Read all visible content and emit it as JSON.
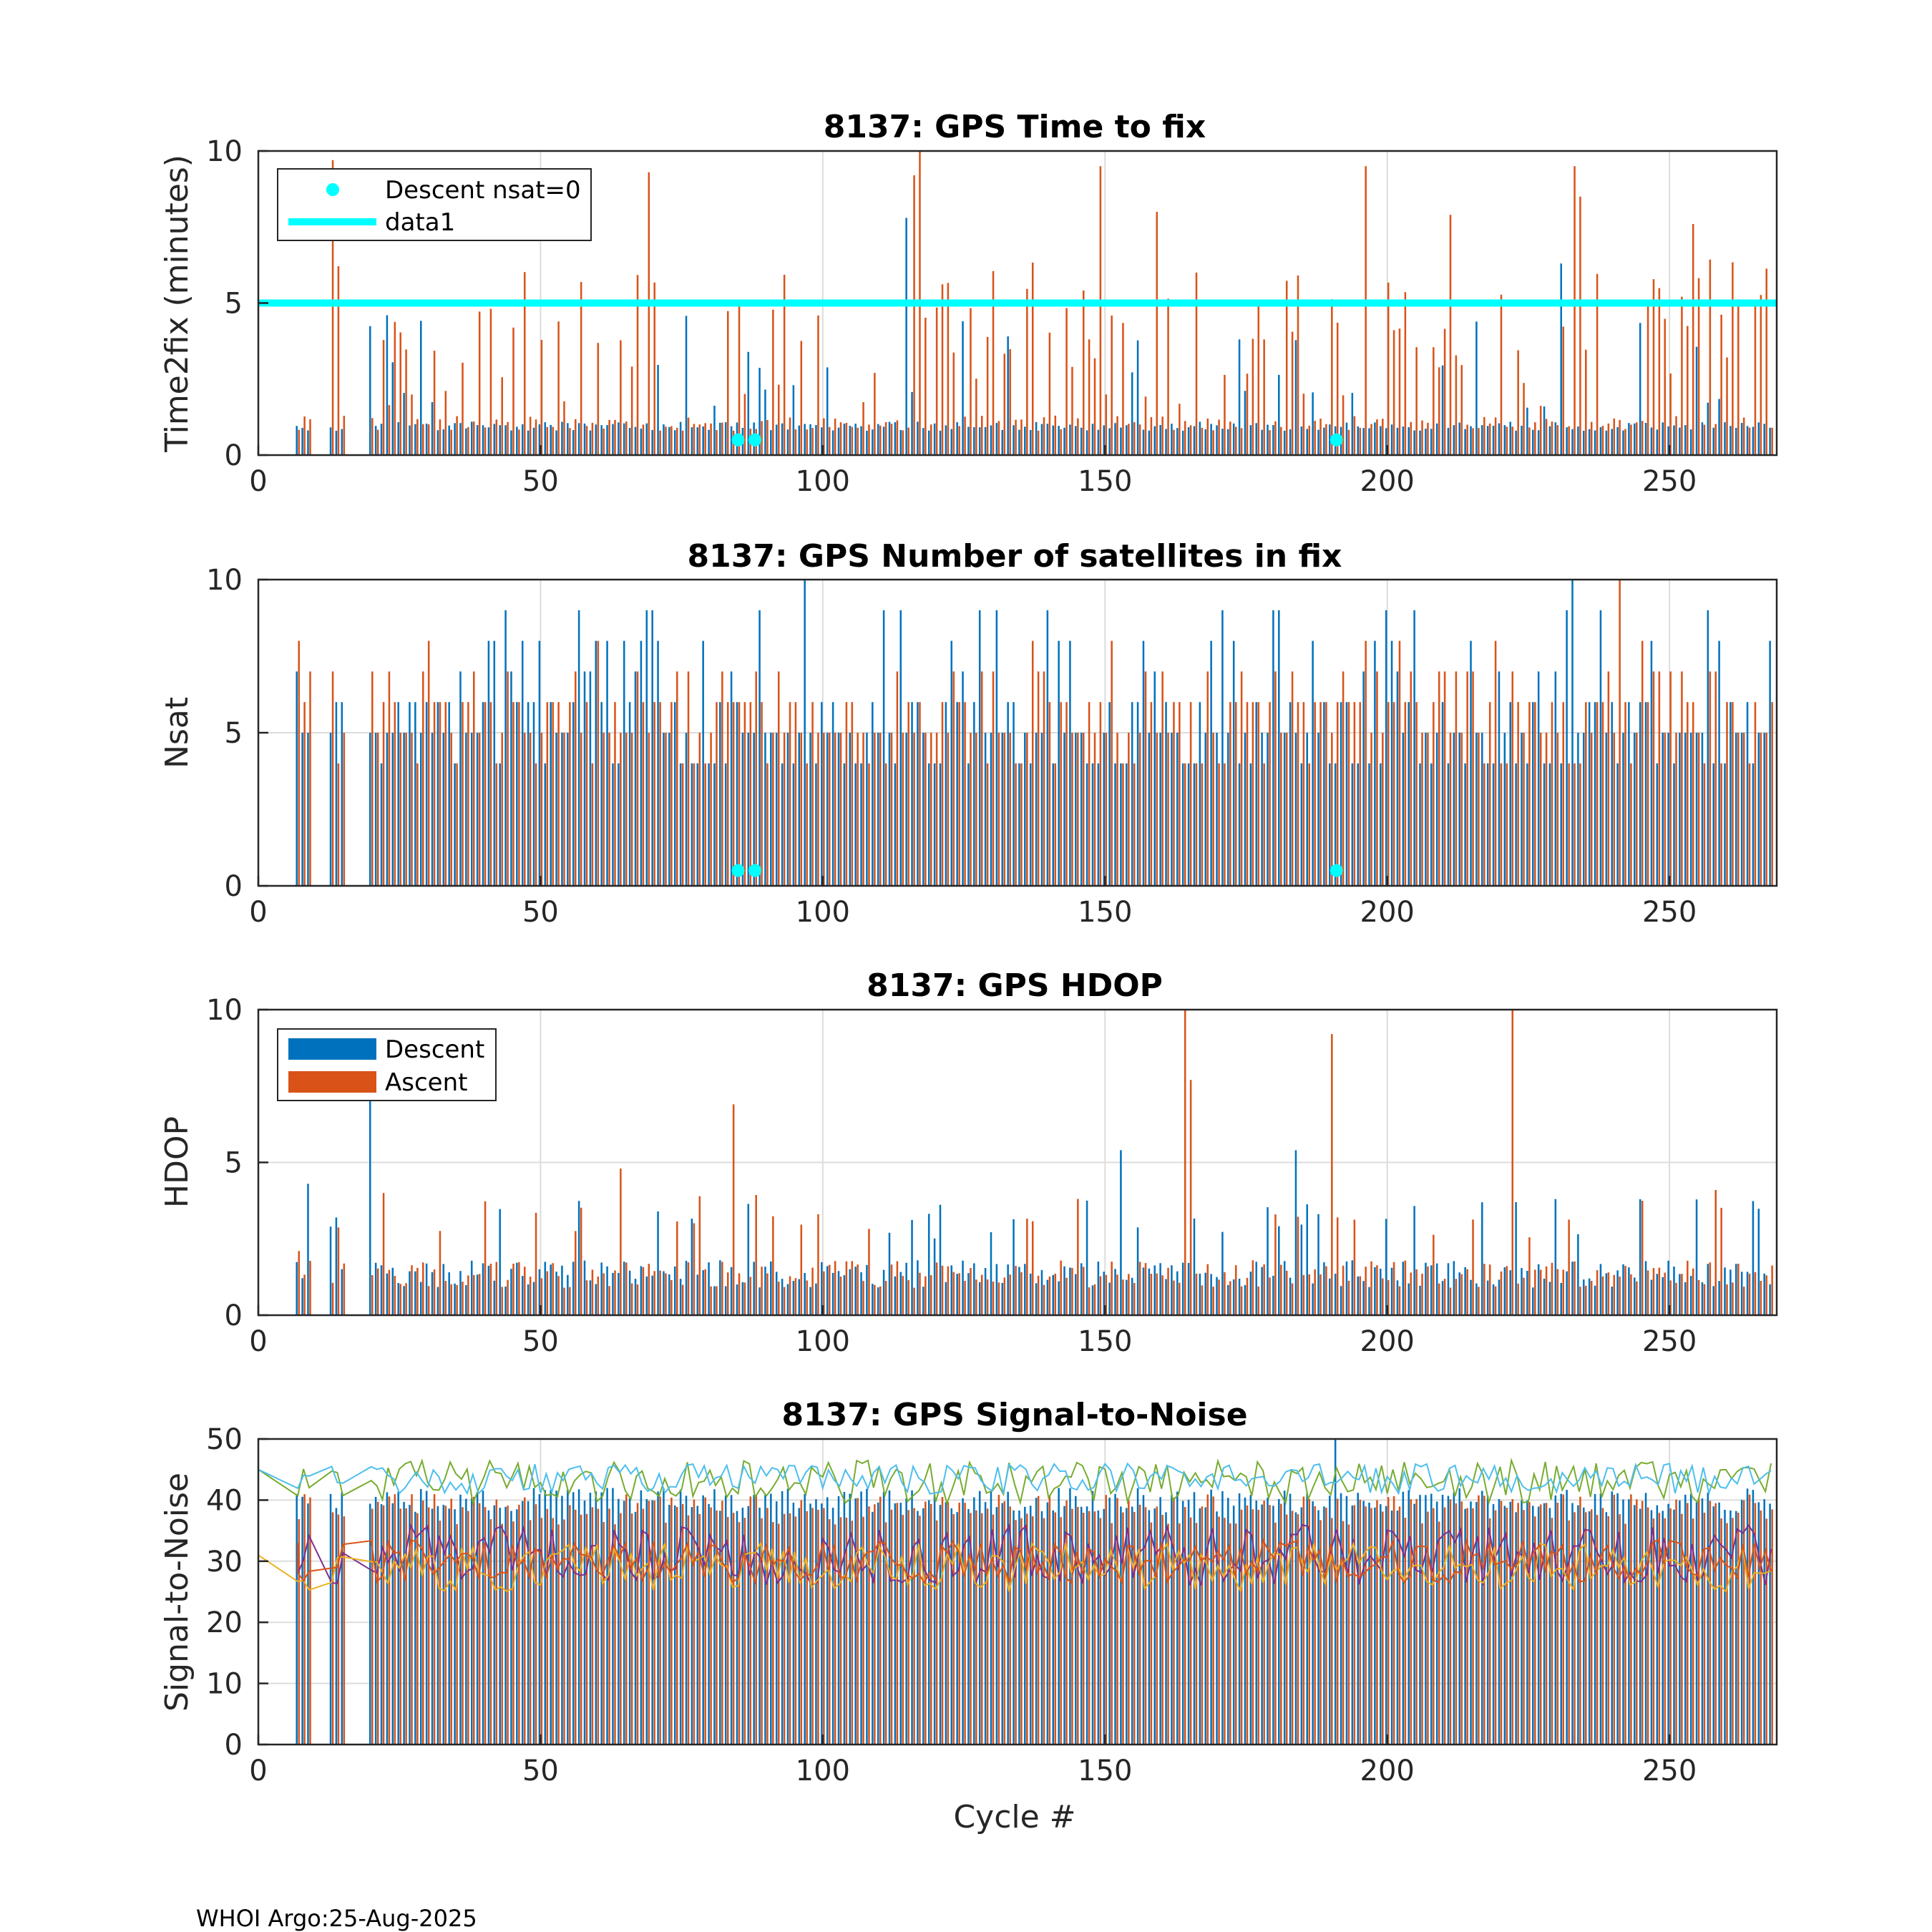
{
  "figure": {
    "footer": "WHOI Argo:25-Aug-2025",
    "xlabel": "Cycle #",
    "xlim": [
      0,
      269
    ],
    "xticks": [
      0,
      50,
      100,
      150,
      200,
      250
    ]
  },
  "colors": {
    "descent": "#0072BD",
    "ascent": "#D95319",
    "cyan": "#00FFFF",
    "snr_lines": [
      "#77AC30",
      "#4DBEEE",
      "#7E2F8E",
      "#EDB120",
      "#0072BD",
      "#D95319"
    ]
  },
  "chart_data": [
    {
      "id": "ttf",
      "type": "bar",
      "title": "8137: GPS Time to fix",
      "ylabel": "Time2fix (minutes)",
      "ylim": [
        0,
        10
      ],
      "yticks": [
        0,
        5,
        10
      ],
      "legend": {
        "location": "top-left",
        "entries": [
          "Descent nsat=0",
          "data1"
        ]
      },
      "reference_line": {
        "name": "data1",
        "y": 5
      },
      "nsat0_markers": {
        "name": "Descent nsat=0",
        "x": [
          85,
          88,
          191
        ],
        "y": 0.5
      },
      "series": [
        {
          "name": "Descent",
          "color": "descent",
          "base": 0.8,
          "base_noise": 0.3,
          "spike_prob": 0.1,
          "spike_range": [
            1.5,
            4.6
          ],
          "overrides": [
            [
              115,
              7.8
            ],
            [
              125,
              4.4
            ],
            [
              231,
              6.3
            ],
            [
              23,
              4.6
            ]
          ]
        },
        {
          "name": "Ascent",
          "color": "ascent",
          "base": 0.8,
          "base_noise": 0.5,
          "spike_prob": 0.45,
          "spike_range": [
            1.5,
            6.5
          ],
          "overrides": [
            [
              117,
              10.0
            ],
            [
              116,
              9.2
            ],
            [
              69,
              9.3
            ],
            [
              233,
              9.5
            ],
            [
              149,
              9.5
            ],
            [
              196,
              9.5
            ],
            [
              13,
              9.7
            ],
            [
              159,
              8.0
            ],
            [
              211,
              7.9
            ],
            [
              254,
              7.6
            ],
            [
              234,
              8.5
            ]
          ]
        }
      ]
    },
    {
      "id": "nsat",
      "type": "bar",
      "title": "8137: GPS Number of satellites in fix",
      "ylabel": "Nsat",
      "ylim": [
        0,
        10
      ],
      "yticks": [
        0,
        5,
        10
      ],
      "nsat0_markers": {
        "name": "Descent nsat=0",
        "x": [
          85,
          88,
          191
        ],
        "y": 0.5
      },
      "series": [
        {
          "name": "Descent",
          "color": "descent",
          "base": 4,
          "base_noise": 2,
          "spike_prob": 0.18,
          "spike_range": [
            7,
            9
          ],
          "overrides": [
            [
              97,
              10
            ],
            [
              233,
              10
            ],
            [
              69,
              9
            ],
            [
              89,
              9
            ],
            [
              205,
              9
            ],
            [
              8,
              5
            ],
            [
              13,
              5
            ],
            [
              14,
              6
            ]
          ]
        },
        {
          "name": "Ascent",
          "color": "ascent",
          "base": 4,
          "base_noise": 3,
          "spike_prob": 0.08,
          "spike_range": [
            7,
            8
          ],
          "overrides": [
            [
              241,
              10
            ],
            [
              9,
              7
            ],
            [
              8,
              6
            ],
            [
              14,
              4
            ]
          ]
        }
      ]
    },
    {
      "id": "hdop",
      "type": "bar",
      "title": "8137: GPS HDOP",
      "ylabel": "HDOP",
      "ylim": [
        0,
        10
      ],
      "yticks": [
        0,
        5,
        10
      ],
      "legend": {
        "location": "top-left",
        "entries": [
          "Descent",
          "Ascent"
        ]
      },
      "series": [
        {
          "name": "Descent",
          "color": "descent",
          "base": 0.9,
          "base_noise": 0.9,
          "spike_prob": 0.12,
          "spike_range": [
            2.5,
            4.0
          ],
          "overrides": [
            [
              20,
              7.4
            ],
            [
              9,
              4.3
            ],
            [
              153,
              5.4
            ],
            [
              184,
              5.4
            ],
            [
              223,
              3.7
            ],
            [
              230,
              3.8
            ],
            [
              13,
              2.9
            ]
          ]
        },
        {
          "name": "Ascent",
          "color": "ascent",
          "base": 0.9,
          "base_noise": 0.9,
          "spike_prob": 0.12,
          "spike_range": [
            2.5,
            4.0
          ],
          "overrides": [
            [
              164,
              10.0
            ],
            [
              222,
              10.0
            ],
            [
              190,
              9.2
            ],
            [
              165,
              7.7
            ],
            [
              84,
              6.9
            ],
            [
              64,
              4.8
            ],
            [
              258,
              4.1
            ],
            [
              22,
              4.0
            ],
            [
              7,
              2.1
            ]
          ]
        }
      ]
    },
    {
      "id": "snr",
      "type": "bar+line",
      "title": "8137: GPS Signal-to-Noise",
      "ylabel": "Signal-to-Noise",
      "ylim": [
        0,
        50
      ],
      "yticks": [
        0,
        10,
        20,
        30,
        40,
        50
      ],
      "series": [
        {
          "name": "Descent",
          "color": "descent",
          "base": 38,
          "base_noise": 4,
          "spike_prob": 0,
          "spike_range": [
            0,
            0
          ],
          "overrides": [
            [
              191,
              50
            ],
            [
              7,
              41
            ],
            [
              13,
              41
            ]
          ]
        },
        {
          "name": "Ascent",
          "color": "ascent",
          "base": 36,
          "base_noise": 5,
          "spike_prob": 0,
          "spike_range": [
            0,
            0
          ],
          "overrides": []
        }
      ],
      "lines": [
        {
          "color_index": 0,
          "mean": 43,
          "noise": 3.5,
          "start": [
            0,
            45
          ]
        },
        {
          "color_index": 1,
          "mean": 43.5,
          "noise": 2.5,
          "start": [
            0,
            45
          ]
        },
        {
          "color_index": 2,
          "mean": 31,
          "noise": 5,
          "start": [
            7,
            32
          ]
        },
        {
          "color_index": 3,
          "mean": 29,
          "noise": 4,
          "start": [
            0,
            31
          ]
        },
        {
          "color_index": 5,
          "mean": 30,
          "noise": 3.5,
          "start": [
            7,
            33
          ]
        }
      ]
    }
  ]
}
